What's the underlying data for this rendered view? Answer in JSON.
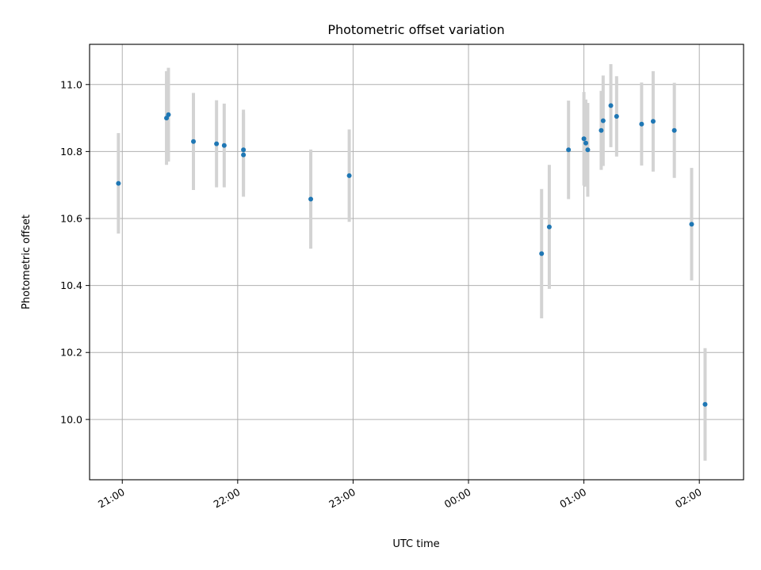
{
  "chart_data": {
    "type": "scatter",
    "title": "Photometric offset variation",
    "xlabel": "UTC time",
    "ylabel": "Photometric offset",
    "x_ticks": [
      "21:00",
      "22:00",
      "23:00",
      "00:00",
      "01:00",
      "02:00"
    ],
    "y_ticks": [
      "10.0",
      "10.2",
      "10.4",
      "10.6",
      "10.8",
      "11.0"
    ],
    "xlim": [
      "20:43",
      "02:23"
    ],
    "ylim": [
      9.82,
      11.12
    ],
    "grid": true,
    "colors": {
      "points": "#1f77b4",
      "errorbars": "#d3d3d3",
      "grid": "#b0b0b0"
    },
    "points": [
      {
        "x": "20:58",
        "y": 10.705,
        "err": 0.15
      },
      {
        "x": "21:23",
        "y": 10.9,
        "err": 0.14
      },
      {
        "x": "21:24",
        "y": 10.91,
        "err": 0.14
      },
      {
        "x": "21:37",
        "y": 10.83,
        "err": 0.145
      },
      {
        "x": "21:49",
        "y": 10.823,
        "err": 0.13
      },
      {
        "x": "21:53",
        "y": 10.818,
        "err": 0.125
      },
      {
        "x": "22:03",
        "y": 10.805,
        "err": 0.12
      },
      {
        "x": "22:03",
        "y": 10.79,
        "err": 0.125
      },
      {
        "x": "22:38",
        "y": 10.658,
        "err": 0.148
      },
      {
        "x": "22:58",
        "y": 10.728,
        "err": 0.138
      },
      {
        "x": "00:38",
        "y": 10.495,
        "err": 0.193
      },
      {
        "x": "00:42",
        "y": 10.575,
        "err": 0.185
      },
      {
        "x": "00:52",
        "y": 10.805,
        "err": 0.147
      },
      {
        "x": "01:00",
        "y": 10.838,
        "err": 0.14
      },
      {
        "x": "01:01",
        "y": 10.825,
        "err": 0.13
      },
      {
        "x": "01:02",
        "y": 10.805,
        "err": 0.14
      },
      {
        "x": "01:09",
        "y": 10.863,
        "err": 0.118
      },
      {
        "x": "01:10",
        "y": 10.892,
        "err": 0.135
      },
      {
        "x": "01:14",
        "y": 10.937,
        "err": 0.124
      },
      {
        "x": "01:17",
        "y": 10.905,
        "err": 0.12
      },
      {
        "x": "01:30",
        "y": 10.882,
        "err": 0.124
      },
      {
        "x": "01:36",
        "y": 10.89,
        "err": 0.15
      },
      {
        "x": "01:47",
        "y": 10.863,
        "err": 0.142
      },
      {
        "x": "01:56",
        "y": 10.583,
        "err": 0.168
      },
      {
        "x": "02:03",
        "y": 10.045,
        "err": 0.168
      }
    ]
  }
}
